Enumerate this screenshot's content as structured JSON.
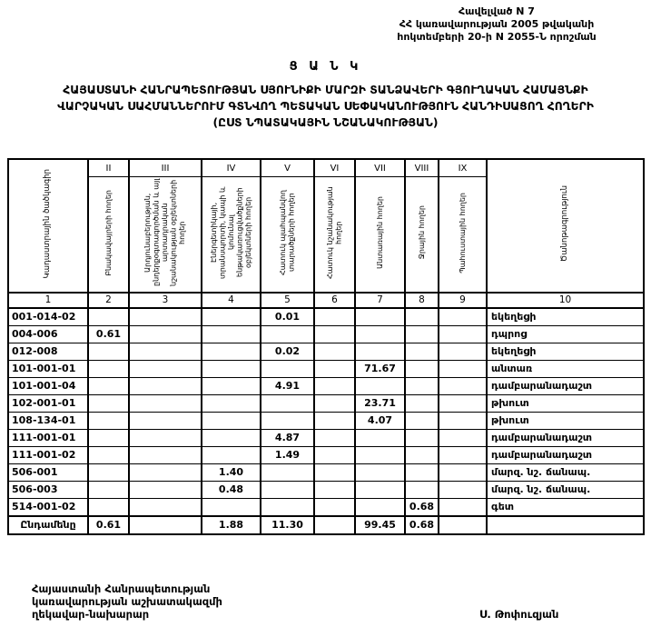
{
  "appendix": {
    "line1": "Հավելված  N 7",
    "line2": "ՀՀ կառավարության 2005 թվականի",
    "line3": "հոկտեմբերի 20-ի N 2055-Ն որոշման"
  },
  "title": {
    "heading": "Ց Ա Ն Կ",
    "line1": "ՀԱՅԱՍՏԱՆԻ ՀԱՆՐԱՊԵՏՈՒԹՅԱՆ ՍՅՈՒՆԻՔԻ ՄԱՐԶԻ ՏԱՆՁԱՎԵՐԻ ԳՅՈՒՂԱԿԱՆ ՀԱՄԱՅՆՔԻ",
    "line2": "ՎԱՐՉԱԿԱՆ ՍԱՀՄԱՆՆԵՐՈՒՄ  ԳՏՆՎՈՂ  ՊԵՏԱԿԱՆ ՍԵՓԱԿԱՆՈՒԹՅՈՒՆ  ՀԱՆԴԻՍԱՑՈՂ ՀՈՂԵՐԻ",
    "line3": "(ԸՍՏ ՆՊԱՏԱԿԱՅԻՆ ՆՇԱՆԱԿՈՒԹՅԱՆ)"
  },
  "table": {
    "corner_header": "Կադաստրային ծածկագիր",
    "note_header": "Ծանոթագրություն",
    "roman": [
      "II",
      "III",
      "IV",
      "V",
      "VI",
      "VII",
      "VIII",
      "IX"
    ],
    "col_headers": [
      "Բնակավայրերի հողեր",
      "Արդյունաբերության, ընդերքօգտագործման և այլ արտադրական նշանակության օբյեկտների հողեր",
      "Էներգետիկայի, տրանսպորտի, կապի և կոմունալ ենթակառուցվածքների օբյեկտների հողեր",
      "Հատուկ պահպանվող տարածքների հողեր",
      "Հատուկ նշանակության հողեր",
      "Անտառային հողեր",
      "Ջրային հողեր",
      "Պահուստային հողեր"
    ],
    "col_numbers": [
      "1",
      "2",
      "3",
      "4",
      "5",
      "6",
      "7",
      "8",
      "9",
      "10"
    ],
    "rows": [
      [
        "001-014-02",
        "",
        "",
        "",
        "0.01",
        "",
        "",
        "",
        "",
        "եկեղեցի"
      ],
      [
        "004-006",
        "0.61",
        "",
        "",
        "",
        "",
        "",
        "",
        "",
        "դպրոց"
      ],
      [
        "012-008",
        "",
        "",
        "",
        "0.02",
        "",
        "",
        "",
        "",
        "եկեղեցի"
      ],
      [
        "101-001-01",
        "",
        "",
        "",
        "",
        "",
        "71.67",
        "",
        "",
        "անտառ"
      ],
      [
        "101-001-04",
        "",
        "",
        "",
        "4.91",
        "",
        "",
        "",
        "",
        "դամբարանադաշտ"
      ],
      [
        "102-001-01",
        "",
        "",
        "",
        "",
        "",
        "23.71",
        "",
        "",
        "թխուտ"
      ],
      [
        "108-134-01",
        "",
        "",
        "",
        "",
        "",
        "4.07",
        "",
        "",
        "թխուտ"
      ],
      [
        "111-001-01",
        "",
        "",
        "",
        "4.87",
        "",
        "",
        "",
        "",
        "դամբարանադաշտ"
      ],
      [
        "111-001-02",
        "",
        "",
        "",
        "1.49",
        "",
        "",
        "",
        "",
        "դամբարանադաշտ"
      ],
      [
        "506-001",
        "",
        "",
        "1.40",
        "",
        "",
        "",
        "",
        "",
        "մարզ. նշ. ճանապ."
      ],
      [
        "506-003",
        "",
        "",
        "0.48",
        "",
        "",
        "",
        "",
        "",
        "մարզ. նշ. ճանապ."
      ],
      [
        "514-001-02",
        "",
        "",
        "",
        "",
        "",
        "",
        "0.68",
        "",
        "գետ"
      ],
      [
        "Ընդամենը",
        "0.61",
        "",
        "1.88",
        "11.30",
        "",
        "99.45",
        "0.68",
        "",
        ""
      ]
    ]
  },
  "footer": {
    "left1": "Հայաստանի Հանրապետության",
    "left2": "կառավարության աշխատակազմի",
    "left3": "ղեկավար-նախարար",
    "signer": "Ս. Թոփուզյան"
  }
}
